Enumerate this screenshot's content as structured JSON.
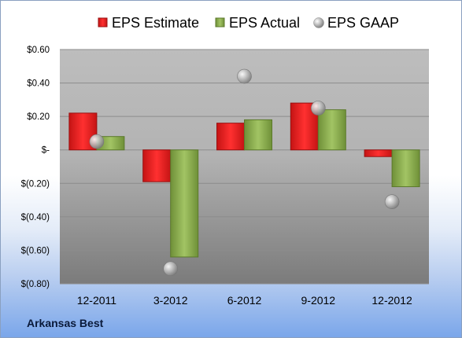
{
  "company": "Arkansas Best",
  "chart_data": {
    "type": "bar",
    "categories": [
      "12-2011",
      "3-2012",
      "6-2012",
      "9-2012",
      "12-2012"
    ],
    "series": [
      {
        "name": "EPS Estimate",
        "kind": "bar",
        "color": "#e02020",
        "values": [
          0.22,
          -0.19,
          0.16,
          0.28,
          -0.04
        ]
      },
      {
        "name": "EPS Actual",
        "kind": "bar",
        "color": "#8fb050",
        "values": [
          0.08,
          -0.64,
          0.18,
          0.24,
          -0.22
        ]
      },
      {
        "name": "EPS GAAP",
        "kind": "marker",
        "color": "#a9a9a9",
        "values": [
          0.05,
          -0.71,
          0.44,
          0.25,
          -0.31
        ]
      }
    ],
    "y_ticks": [
      {
        "value": 0.6,
        "label": "$0.60"
      },
      {
        "value": 0.4,
        "label": "$0.40"
      },
      {
        "value": 0.2,
        "label": "$0.20"
      },
      {
        "value": 0.0,
        "label": "$-"
      },
      {
        "value": -0.2,
        "label": "$(0.20)"
      },
      {
        "value": -0.4,
        "label": "$(0.40)"
      },
      {
        "value": -0.6,
        "label": "$(0.60)"
      },
      {
        "value": -0.8,
        "label": "$(0.80)"
      }
    ],
    "ylim": [
      -0.8,
      0.6
    ],
    "grid": true,
    "legend_position": "top"
  }
}
